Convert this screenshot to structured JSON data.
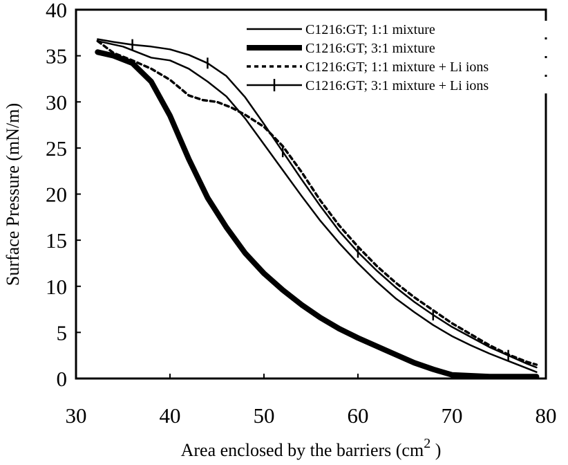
{
  "chart_data": {
    "type": "line",
    "title": "",
    "xlabel": "Area enclosed by the barriers (cm",
    "xlabel_superscript": "2",
    "xlabel_suffix": " )",
    "ylabel": "Surface Pressure (mN/m)",
    "xlim": [
      30,
      80
    ],
    "ylim": [
      0,
      40
    ],
    "xticks": [
      "30",
      "40",
      "50",
      "60",
      "70",
      "80"
    ],
    "yticks": [
      "0",
      "5",
      "10",
      "15",
      "20",
      "25",
      "30",
      "35",
      "40"
    ],
    "grid": false,
    "legend_position": "top-right",
    "series": [
      {
        "name": "C1216:GT; 1:1 mixture",
        "style": "thin-solid",
        "x": [
          32.3,
          35,
          38,
          40,
          42,
          44,
          46,
          48,
          50,
          52,
          54,
          56,
          58,
          60,
          62,
          64,
          66,
          68,
          70,
          72,
          74,
          76,
          78,
          79
        ],
        "y": [
          36.6,
          36.0,
          34.8,
          34.5,
          33.6,
          32.2,
          30.6,
          28.2,
          25.4,
          22.6,
          19.8,
          17.1,
          14.7,
          12.5,
          10.5,
          8.7,
          7.2,
          5.8,
          4.6,
          3.6,
          2.7,
          1.9,
          1.1,
          0.7
        ]
      },
      {
        "name": "C1216:GT; 3:1 mixture",
        "style": "thick-solid",
        "x": [
          32.3,
          34,
          36,
          38,
          40,
          42,
          44,
          46,
          48,
          50,
          52,
          54,
          56,
          58,
          60,
          62,
          64,
          66,
          68,
          70,
          72,
          74,
          76,
          78,
          79
        ],
        "y": [
          35.4,
          35.0,
          34.2,
          32.2,
          28.5,
          23.8,
          19.6,
          16.4,
          13.6,
          11.4,
          9.6,
          8.0,
          6.6,
          5.4,
          4.4,
          3.5,
          2.6,
          1.7,
          1.0,
          0.4,
          0.3,
          0.2,
          0.2,
          0.2,
          0.2
        ]
      },
      {
        "name": "C1216:GT; 1:1 mixture + Li ions",
        "style": "dotted",
        "x": [
          32.3,
          34,
          36,
          38,
          40,
          42,
          43.5,
          45,
          46.5,
          48,
          50,
          52,
          54,
          56,
          58,
          60,
          62,
          64,
          66,
          68,
          70,
          72,
          74,
          76,
          78,
          79
        ],
        "y": [
          36.6,
          35.3,
          34.5,
          33.6,
          32.4,
          30.7,
          30.2,
          30.0,
          29.4,
          28.6,
          27.3,
          25.2,
          22.4,
          19.3,
          16.6,
          14.3,
          12.2,
          10.4,
          8.8,
          7.4,
          6.0,
          4.8,
          3.6,
          2.6,
          1.8,
          1.5
        ]
      },
      {
        "name": "C1216:GT; 3:1 mixture + Li ions",
        "style": "solid-with-crossmarks",
        "x": [
          32.3,
          34,
          36,
          38,
          40,
          42,
          44,
          46,
          48,
          50,
          52,
          54,
          56,
          58,
          60,
          62,
          64,
          66,
          68,
          70,
          72,
          74,
          76,
          78,
          79
        ],
        "y": [
          36.8,
          36.5,
          36.2,
          36.0,
          35.7,
          35.1,
          34.2,
          32.8,
          30.5,
          27.6,
          24.6,
          21.6,
          18.7,
          16.0,
          13.7,
          11.7,
          9.9,
          8.3,
          6.9,
          5.6,
          4.5,
          3.4,
          2.5,
          1.6,
          1.2
        ]
      }
    ]
  }
}
